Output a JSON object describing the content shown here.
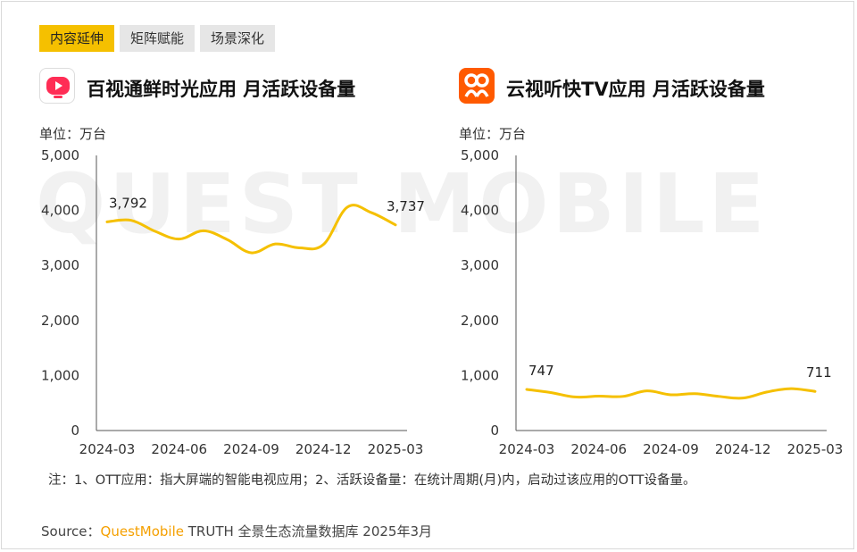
{
  "tabs": [
    {
      "label": "内容延伸",
      "active": true
    },
    {
      "label": "矩阵赋能",
      "active": false
    },
    {
      "label": "场景深化",
      "active": false
    }
  ],
  "watermark": "QUEST MOBILE",
  "colors": {
    "accent": "#f5c000",
    "line": "#f5c000",
    "icon_b": "#ff5a00",
    "icon_a": "#ff2d55"
  },
  "charts": [
    {
      "title": "百视通鲜时光应用 月活跃设备量",
      "unit": "单位：万台",
      "icon": "tv-play-icon"
    },
    {
      "title": "云视听快TV应用 月活跃设备量",
      "unit": "单位：万台",
      "icon": "people-icon"
    }
  ],
  "chart_data": [
    {
      "type": "line",
      "title": "百视通鲜时光应用 月活跃设备量",
      "x": [
        "2024-03",
        "2024-04",
        "2024-05",
        "2024-06",
        "2024-07",
        "2024-08",
        "2024-09",
        "2024-10",
        "2024-11",
        "2024-12",
        "2025-01",
        "2025-02",
        "2025-03"
      ],
      "xticks": [
        "2024-03",
        "2024-06",
        "2024-09",
        "2024-12",
        "2025-03"
      ],
      "series": [
        {
          "values": [
            3792,
            3820,
            3620,
            3480,
            3630,
            3470,
            3230,
            3390,
            3320,
            3380,
            4060,
            3960,
            3737
          ]
        }
      ],
      "ylim": [
        0,
        5000
      ],
      "yticks": [
        0,
        1000,
        2000,
        3000,
        4000,
        5000
      ],
      "ytick_labels": [
        "0",
        "1,000",
        "2,000",
        "3,000",
        "4,000",
        "5,000"
      ],
      "labels": [
        {
          "index": 0,
          "text": "3,792"
        },
        {
          "index": 12,
          "text": "3,737"
        }
      ]
    },
    {
      "type": "line",
      "title": "云视听快TV应用 月活跃设备量",
      "x": [
        "2024-03",
        "2024-04",
        "2024-05",
        "2024-06",
        "2024-07",
        "2024-08",
        "2024-09",
        "2024-10",
        "2024-11",
        "2024-12",
        "2025-01",
        "2025-02",
        "2025-03"
      ],
      "xticks": [
        "2024-03",
        "2024-06",
        "2024-09",
        "2024-12",
        "2025-03"
      ],
      "series": [
        {
          "values": [
            747,
            690,
            610,
            625,
            620,
            720,
            650,
            670,
            620,
            590,
            700,
            760,
            711
          ]
        }
      ],
      "ylim": [
        0,
        5000
      ],
      "yticks": [
        0,
        1000,
        2000,
        3000,
        4000,
        5000
      ],
      "ytick_labels": [
        "0",
        "1,000",
        "2,000",
        "3,000",
        "4,000",
        "5,000"
      ],
      "labels": [
        {
          "index": 0,
          "text": "747"
        },
        {
          "index": 12,
          "text": "711"
        }
      ]
    }
  ],
  "note": "注：1、OTT应用：指大屏端的智能电视应用；2、活跃设备量：在统计周期(月)内，启动过该应用的OTT设备量。",
  "source": {
    "prefix": "Source：",
    "brand": "QuestMobile",
    "rest": " TRUTH 全景生态流量数据库 2025年3月"
  }
}
